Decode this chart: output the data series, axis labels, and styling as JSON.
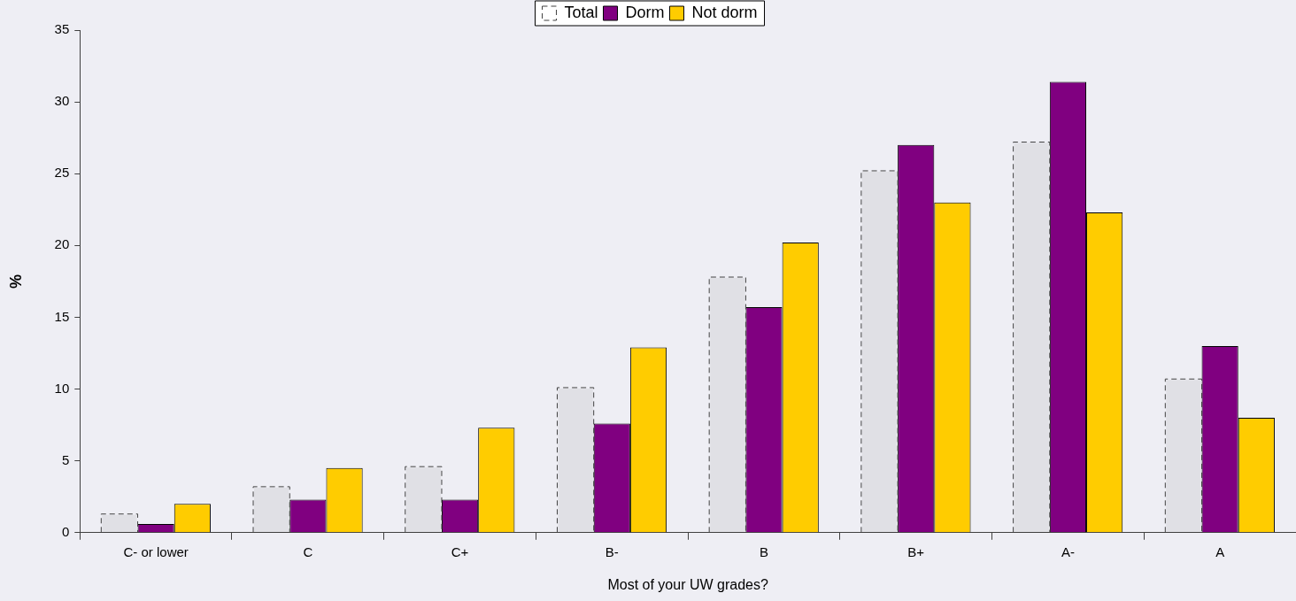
{
  "chart_data": {
    "type": "bar",
    "xlabel": "Most of your UW grades?",
    "ylabel": "%",
    "categories": [
      "C- or lower",
      "C",
      "C+",
      "B-",
      "B",
      "B+",
      "A-",
      "A"
    ],
    "series": [
      {
        "name": "Total",
        "color": "#404040",
        "line_style": "dashed",
        "values": [
          1.3,
          3.2,
          4.6,
          10.1,
          17.8,
          25.2,
          27.2,
          10.7
        ]
      },
      {
        "name": "Dorm",
        "color": "#800080",
        "values": [
          0.6,
          2.3,
          2.3,
          7.6,
          15.7,
          27.0,
          31.4,
          13.0
        ]
      },
      {
        "name": "Not dorm",
        "color": "#ffcc00",
        "values": [
          2.0,
          4.5,
          7.3,
          12.9,
          20.2,
          23.0,
          22.3,
          8.0
        ]
      }
    ],
    "ylim": [
      0,
      35
    ],
    "yticks": [
      0,
      5,
      10,
      15,
      20,
      25,
      30,
      35
    ],
    "grid": false,
    "legend": "top"
  }
}
